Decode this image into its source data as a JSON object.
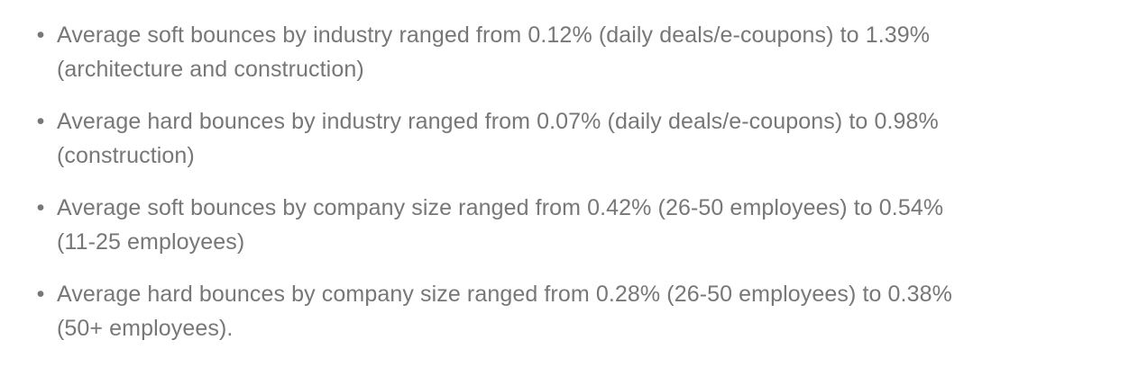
{
  "page": {
    "background_color": "#ffffff",
    "text_color": "#777777",
    "bullet_glyph": "•"
  },
  "bullet_list": {
    "items": [
      {
        "lines": [
          "Average soft bounces by industry ranged from 0.12% (daily deals/e-coupons) to 1.39%",
          "(architecture and construction)"
        ]
      },
      {
        "lines": [
          "Average hard bounces by industry ranged from 0.07% (daily deals/e-coupons) to 0.98%",
          "(construction)"
        ]
      },
      {
        "lines": [
          "Average soft bounces by company size ranged from 0.42% (26-50 employees) to 0.54%",
          "(11-25 employees)"
        ]
      },
      {
        "lines": [
          "Average hard bounces by company size ranged from 0.28% (26-50 employees) to 0.38%",
          "(50+ employees)."
        ]
      }
    ]
  }
}
